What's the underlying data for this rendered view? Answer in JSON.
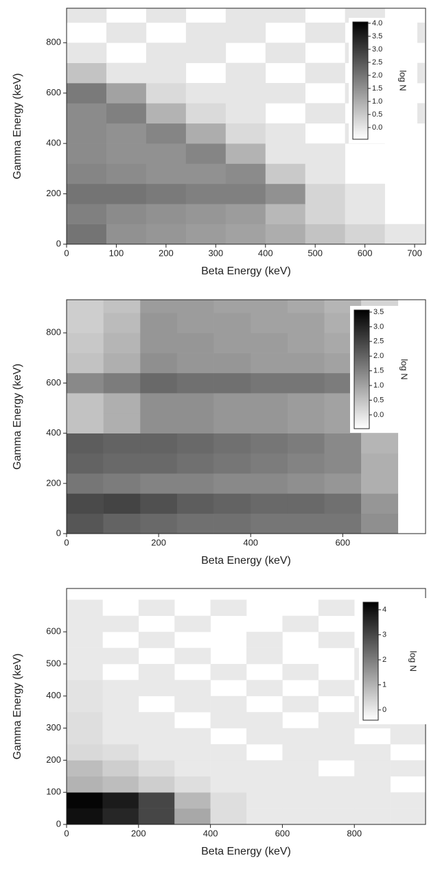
{
  "chart_data": [
    {
      "type": "heatmap",
      "xlabel": "Beta Energy (keV)",
      "ylabel": "Gamma Energy (keV)",
      "xlim": [
        0,
        722
      ],
      "ylim": [
        0,
        937
      ],
      "xticks": [
        0,
        100,
        200,
        300,
        400,
        500,
        600,
        700
      ],
      "yticks": [
        0,
        200,
        400,
        600,
        800
      ],
      "x_bins": [
        0,
        80,
        160,
        240,
        320,
        400,
        480,
        560,
        640,
        720
      ],
      "y_bins": [
        0,
        80,
        160,
        240,
        320,
        400,
        480,
        560,
        640,
        720,
        800,
        880,
        960
      ],
      "z": [
        [
          2.0,
          1.5,
          1.4,
          1.3,
          1.2,
          1.0,
          0.6,
          0.3,
          0.0
        ],
        [
          1.8,
          1.6,
          1.5,
          1.4,
          1.3,
          0.8,
          0.3,
          0.0,
          null
        ],
        [
          2.0,
          2.0,
          1.9,
          1.8,
          1.8,
          1.5,
          0.3,
          0.0,
          null
        ],
        [
          1.7,
          1.6,
          1.5,
          1.5,
          1.6,
          0.5,
          0.0,
          null,
          null
        ],
        [
          1.6,
          1.5,
          1.5,
          1.7,
          0.9,
          0.0,
          0.0,
          null,
          null
        ],
        [
          1.6,
          1.5,
          1.7,
          1.0,
          0.2,
          0.0,
          null,
          0.0,
          null
        ],
        [
          1.6,
          1.8,
          0.9,
          0.2,
          0.0,
          null,
          0.0,
          null,
          0.0
        ],
        [
          1.9,
          1.2,
          0.2,
          0.0,
          0.0,
          0.0,
          null,
          0.0,
          null
        ],
        [
          0.6,
          0.0,
          0.0,
          null,
          0.0,
          null,
          0.0,
          null,
          0.0
        ],
        [
          0.0,
          null,
          0.0,
          0.0,
          null,
          0.0,
          null,
          0.0,
          null
        ],
        [
          null,
          0.0,
          null,
          0.0,
          0.0,
          null,
          0.0,
          null,
          0.0
        ],
        [
          0.0,
          null,
          0.0,
          null,
          0.0,
          0.0,
          null,
          0.0,
          null
        ]
      ],
      "colorbar": {
        "label": "log N",
        "clim": [
          -0.45,
          4.05
        ],
        "ticks": [
          {
            "value": 0,
            "label": "0.0"
          },
          0.5,
          {
            "value": 1,
            "label": "1.0"
          },
          1.5,
          {
            "value": 2,
            "label": "2.0"
          },
          2.5,
          {
            "value": 3,
            "label": "3.0"
          },
          3.5,
          {
            "value": 4,
            "label": "4.0"
          }
        ]
      }
    },
    {
      "type": "heatmap",
      "xlabel": "Beta Energy (keV)",
      "ylabel": "Gamma Energy (keV)",
      "xlim": [
        0,
        780
      ],
      "ylim": [
        0,
        932
      ],
      "xticks": [
        0,
        200,
        400,
        600
      ],
      "yticks": [
        0,
        200,
        400,
        600,
        800
      ],
      "x_bins": [
        0,
        80,
        160,
        240,
        320,
        400,
        480,
        560,
        640,
        720
      ],
      "y_bins": [
        0,
        80,
        160,
        240,
        320,
        400,
        480,
        560,
        640,
        720,
        800,
        880,
        960
      ],
      "z": [
        [
          2.2,
          2.0,
          1.9,
          1.8,
          1.8,
          1.7,
          1.7,
          1.7,
          1.3
        ],
        [
          2.4,
          2.5,
          2.3,
          2.1,
          2.0,
          1.9,
          1.9,
          1.8,
          1.2
        ],
        [
          1.7,
          1.6,
          1.5,
          1.5,
          1.4,
          1.4,
          1.3,
          1.2,
          0.8
        ],
        [
          2.0,
          1.9,
          1.9,
          1.8,
          1.7,
          1.6,
          1.5,
          1.4,
          0.8
        ],
        [
          2.1,
          2.0,
          2.0,
          1.9,
          1.8,
          1.7,
          1.6,
          1.4,
          0.7
        ],
        [
          0.5,
          0.8,
          1.3,
          1.3,
          1.2,
          1.2,
          1.1,
          1.0,
          0.5
        ],
        [
          0.5,
          0.8,
          1.3,
          1.3,
          1.2,
          1.2,
          1.1,
          1.0,
          0.4
        ],
        [
          1.4,
          1.6,
          1.9,
          1.8,
          1.8,
          1.7,
          1.7,
          1.6,
          1.0
        ],
        [
          0.5,
          0.8,
          1.3,
          1.2,
          1.2,
          1.1,
          1.1,
          1.0,
          0.3
        ],
        [
          0.4,
          0.7,
          1.2,
          1.2,
          1.1,
          1.1,
          1.0,
          0.9,
          0.3
        ],
        [
          0.3,
          0.6,
          1.2,
          1.1,
          1.1,
          1.0,
          1.0,
          0.8,
          0.2
        ],
        [
          0.3,
          0.5,
          1.1,
          1.1,
          1.0,
          1.0,
          0.9,
          0.7,
          0.2
        ]
      ],
      "colorbar": {
        "label": "log N",
        "clim": [
          -0.47,
          3.57
        ],
        "ticks": [
          {
            "value": 0,
            "label": "0.0"
          },
          0.5,
          {
            "value": 1,
            "label": "1.0"
          },
          1.5,
          {
            "value": 2,
            "label": "2.0"
          },
          2.5,
          {
            "value": 3,
            "label": "3.0"
          },
          3.5
        ]
      }
    },
    {
      "type": "heatmap",
      "xlabel": "Beta Energy (keV)",
      "ylabel": "Gamma Energy (keV)",
      "xlim": [
        0,
        998
      ],
      "ylim": [
        0,
        735
      ],
      "xticks": [
        0,
        200,
        400,
        600,
        800
      ],
      "yticks": [
        0,
        100,
        200,
        300,
        400,
        500,
        600
      ],
      "x_bins": [
        0,
        100,
        200,
        300,
        400,
        500,
        600,
        700,
        800,
        900,
        1000
      ],
      "y_bins": [
        0,
        50,
        100,
        150,
        200,
        250,
        300,
        350,
        400,
        450,
        500,
        550,
        600,
        650,
        700
      ],
      "z": [
        [
          4.0,
          3.6,
          3.0,
          1.2,
          0.2,
          0.0,
          0.0,
          0.0,
          0.0,
          0.0
        ],
        [
          4.2,
          3.8,
          3.0,
          0.9,
          0.2,
          0.0,
          0.0,
          0.0,
          0.0,
          0.0
        ],
        [
          1.0,
          0.8,
          0.5,
          0.2,
          0.0,
          0.0,
          0.0,
          0.0,
          0.0,
          null
        ],
        [
          0.8,
          0.5,
          0.2,
          0.0,
          0.0,
          0.0,
          0.0,
          null,
          0.0,
          0.0
        ],
        [
          0.3,
          0.2,
          0.0,
          0.0,
          0.0,
          null,
          0.0,
          0.0,
          0.0,
          null
        ],
        [
          0.2,
          0.0,
          0.0,
          0.0,
          null,
          0.0,
          0.0,
          0.0,
          null,
          0.0
        ],
        [
          0.2,
          0.0,
          0.0,
          null,
          0.0,
          0.0,
          null,
          0.0,
          0.0,
          0.0
        ],
        [
          0.1,
          0.0,
          null,
          0.0,
          0.0,
          null,
          0.0,
          null,
          0.0,
          null
        ],
        [
          0.1,
          0.0,
          0.0,
          0.0,
          null,
          0.0,
          null,
          0.0,
          null,
          0.0
        ],
        [
          0.0,
          null,
          0.0,
          null,
          0.0,
          null,
          0.0,
          null,
          0.0,
          null
        ],
        [
          0.0,
          0.0,
          null,
          0.0,
          null,
          0.0,
          null,
          null,
          0.0,
          null
        ],
        [
          0.0,
          null,
          0.0,
          null,
          null,
          0.0,
          null,
          0.0,
          null,
          null
        ],
        [
          0.0,
          0.0,
          null,
          0.0,
          null,
          null,
          0.0,
          null,
          null,
          0.0
        ],
        [
          0.0,
          null,
          0.0,
          null,
          0.0,
          null,
          null,
          0.0,
          null,
          null
        ]
      ],
      "colorbar": {
        "label": "log N",
        "clim": [
          -0.41,
          4.3
        ],
        "ticks": [
          0,
          1,
          2,
          3,
          4
        ]
      }
    }
  ]
}
